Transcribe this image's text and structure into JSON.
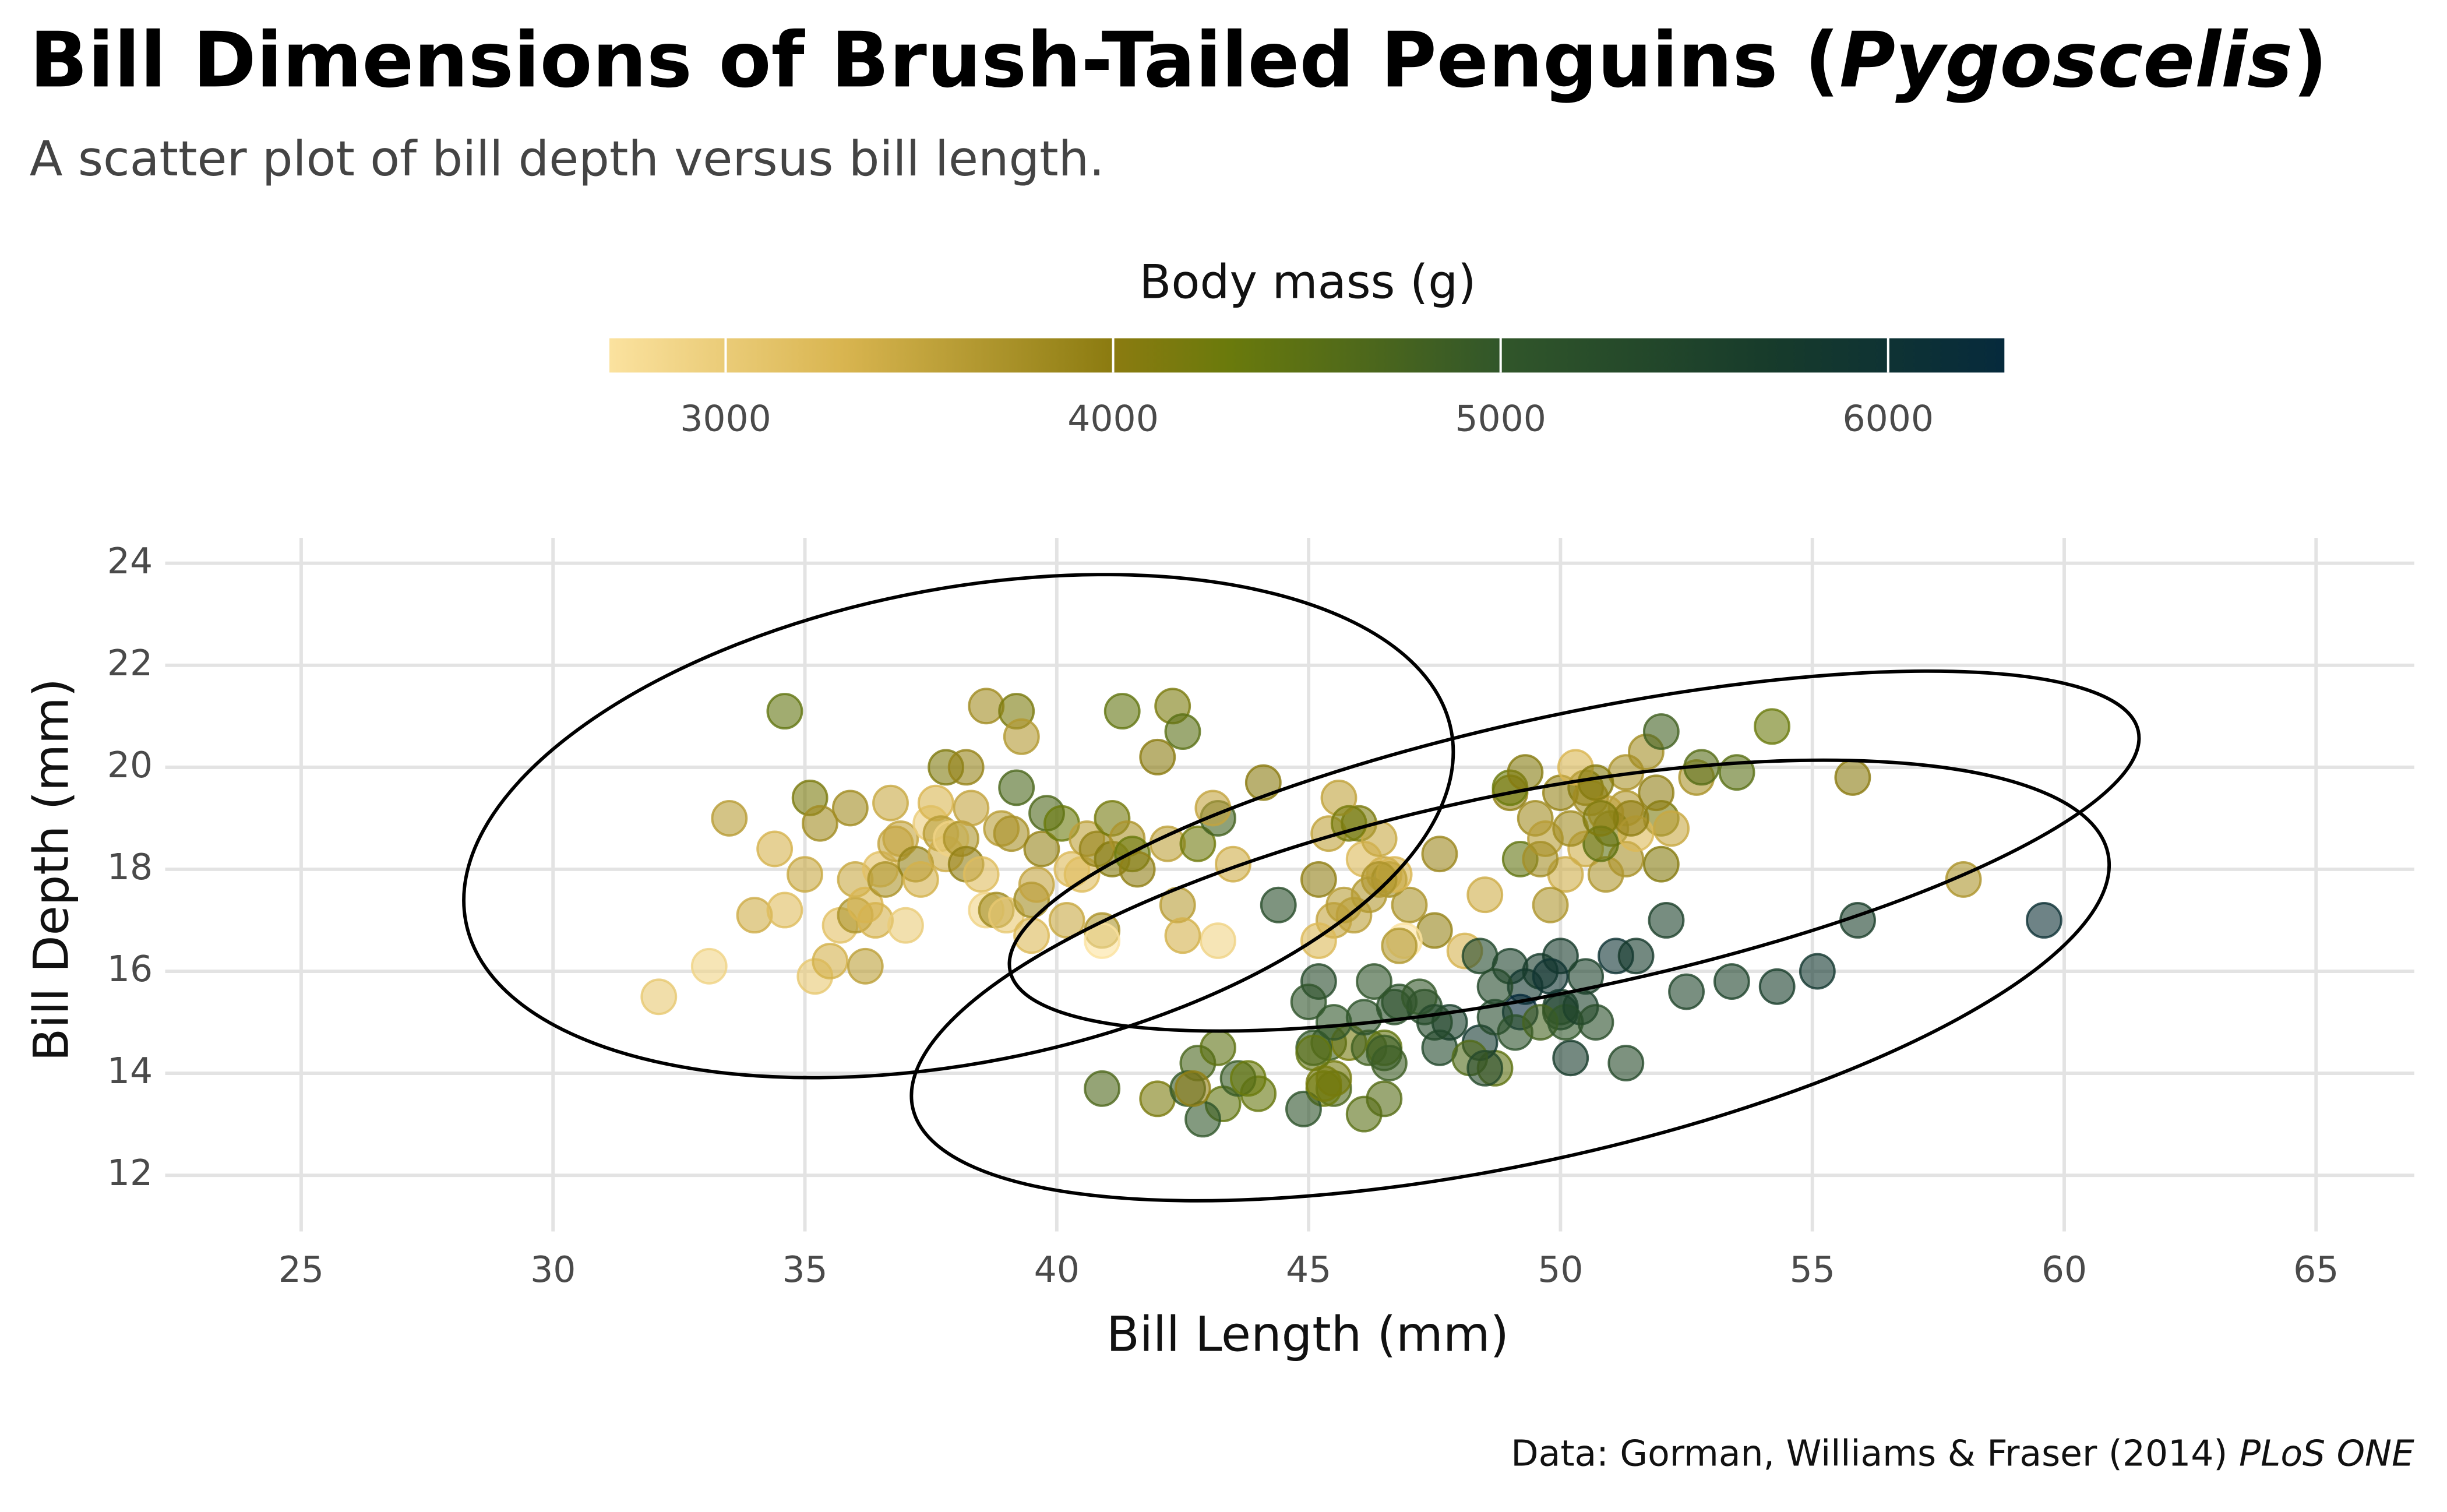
{
  "chart_data": {
    "type": "scatter",
    "title": [
      {
        "text": "Bill Dimensions of Brush-Tailed Penguins ("
      },
      {
        "text": "Pygoscelis",
        "italic": true
      },
      {
        "text": ")"
      }
    ],
    "subtitle": "A scatter plot of bill depth versus bill length.",
    "caption": [
      {
        "text": "Data: Gorman, Williams & Fraser (2014) "
      },
      {
        "text": "PLoS ONE",
        "italic": true
      }
    ],
    "xlabel": "Bill Length (mm)",
    "ylabel": "Bill Depth (mm)",
    "xlim": [
      22.3,
      66.95
    ],
    "ylim": [
      10.9,
      24.5
    ],
    "xticks": [
      25,
      30,
      35,
      40,
      45,
      50,
      55,
      60,
      65
    ],
    "yticks": [
      12,
      14,
      16,
      18,
      20,
      22,
      24
    ],
    "grid": true,
    "point_opacity": 0.6,
    "colorbar_title": "Body mass (g)",
    "colorbar_lim": [
      2700,
      6300
    ],
    "colorbar_ticks": [
      3000,
      4000,
      5000,
      6000
    ],
    "colormap": [
      {
        "value": 2700,
        "color": "#fbe29f"
      },
      {
        "value": 3300,
        "color": "#d9b550"
      },
      {
        "value": 4000,
        "color": "#8b7b10"
      },
      {
        "value": 4300,
        "color": "#6a7a0c"
      },
      {
        "value": 5000,
        "color": "#31562a"
      },
      {
        "value": 5700,
        "color": "#173b2b"
      },
      {
        "value": 6300,
        "color": "#062a3c"
      }
    ],
    "points": [
      {
        "x": 32.1,
        "y": 15.5,
        "mass": 3050
      },
      {
        "x": 33.1,
        "y": 16.1,
        "mass": 2900
      },
      {
        "x": 33.5,
        "y": 19.0,
        "mass": 3600
      },
      {
        "x": 34.0,
        "y": 17.1,
        "mass": 3400
      },
      {
        "x": 34.4,
        "y": 18.4,
        "mass": 3325
      },
      {
        "x": 34.6,
        "y": 21.1,
        "mass": 4400
      },
      {
        "x": 34.6,
        "y": 17.2,
        "mass": 3200
      },
      {
        "x": 35.0,
        "y": 17.9,
        "mass": 3450
      },
      {
        "x": 35.1,
        "y": 19.4,
        "mass": 4150
      },
      {
        "x": 35.2,
        "y": 15.9,
        "mass": 3050
      },
      {
        "x": 35.3,
        "y": 18.9,
        "mass": 3800
      },
      {
        "x": 35.5,
        "y": 16.2,
        "mass": 3350
      },
      {
        "x": 35.7,
        "y": 16.9,
        "mass": 3150
      },
      {
        "x": 35.9,
        "y": 19.2,
        "mass": 3800
      },
      {
        "x": 36.0,
        "y": 17.1,
        "mass": 3700
      },
      {
        "x": 36.0,
        "y": 17.8,
        "mass": 3450
      },
      {
        "x": 36.2,
        "y": 16.1,
        "mass": 3550
      },
      {
        "x": 36.2,
        "y": 17.3,
        "mass": 3300
      },
      {
        "x": 36.4,
        "y": 17.0,
        "mass": 3325
      },
      {
        "x": 36.5,
        "y": 18.0,
        "mass": 3150
      },
      {
        "x": 36.6,
        "y": 17.8,
        "mass": 3700
      },
      {
        "x": 36.7,
        "y": 19.3,
        "mass": 3450
      },
      {
        "x": 36.8,
        "y": 18.5,
        "mass": 3500
      },
      {
        "x": 36.9,
        "y": 18.6,
        "mass": 3500
      },
      {
        "x": 37.0,
        "y": 16.9,
        "mass": 3000
      },
      {
        "x": 37.2,
        "y": 18.1,
        "mass": 3900
      },
      {
        "x": 37.3,
        "y": 17.8,
        "mass": 3350
      },
      {
        "x": 37.5,
        "y": 18.9,
        "mass": 2975
      },
      {
        "x": 37.6,
        "y": 19.3,
        "mass": 3300
      },
      {
        "x": 37.7,
        "y": 18.7,
        "mass": 3600
      },
      {
        "x": 37.8,
        "y": 18.3,
        "mass": 3400
      },
      {
        "x": 37.8,
        "y": 20.0,
        "mass": 4100
      },
      {
        "x": 37.9,
        "y": 18.6,
        "mass": 2900
      },
      {
        "x": 38.1,
        "y": 18.6,
        "mass": 3700
      },
      {
        "x": 38.2,
        "y": 18.1,
        "mass": 3950
      },
      {
        "x": 38.2,
        "y": 20.0,
        "mass": 3900
      },
      {
        "x": 38.3,
        "y": 19.2,
        "mass": 3500
      },
      {
        "x": 38.5,
        "y": 17.9,
        "mass": 3200
      },
      {
        "x": 38.6,
        "y": 21.2,
        "mass": 3800
      },
      {
        "x": 38.6,
        "y": 17.2,
        "mass": 2900
      },
      {
        "x": 38.8,
        "y": 17.2,
        "mass": 3800
      },
      {
        "x": 38.9,
        "y": 18.8,
        "mass": 3600
      },
      {
        "x": 39.0,
        "y": 17.1,
        "mass": 3050
      },
      {
        "x": 39.1,
        "y": 18.7,
        "mass": 3750
      },
      {
        "x": 39.2,
        "y": 19.6,
        "mass": 4675
      },
      {
        "x": 39.2,
        "y": 21.1,
        "mass": 4150
      },
      {
        "x": 39.3,
        "y": 20.6,
        "mass": 3650
      },
      {
        "x": 39.5,
        "y": 16.7,
        "mass": 3250
      },
      {
        "x": 39.5,
        "y": 17.4,
        "mass": 3800
      },
      {
        "x": 39.6,
        "y": 17.7,
        "mass": 3500
      },
      {
        "x": 39.7,
        "y": 18.4,
        "mass": 3900
      },
      {
        "x": 39.8,
        "y": 19.1,
        "mass": 4650
      },
      {
        "x": 40.1,
        "y": 18.9,
        "mass": 4300
      },
      {
        "x": 40.2,
        "y": 17.0,
        "mass": 3450
      },
      {
        "x": 40.3,
        "y": 18.0,
        "mass": 3250
      },
      {
        "x": 40.5,
        "y": 17.9,
        "mass": 3200
      },
      {
        "x": 40.6,
        "y": 18.6,
        "mass": 3550
      },
      {
        "x": 40.8,
        "y": 18.4,
        "mass": 3900
      },
      {
        "x": 40.9,
        "y": 16.8,
        "mass": 3700
      },
      {
        "x": 41.1,
        "y": 19.0,
        "mass": 4200
      },
      {
        "x": 41.1,
        "y": 18.2,
        "mass": 4050
      },
      {
        "x": 41.3,
        "y": 21.1,
        "mass": 4400
      },
      {
        "x": 41.4,
        "y": 18.6,
        "mass": 3700
      },
      {
        "x": 41.5,
        "y": 18.3,
        "mass": 4300
      },
      {
        "x": 41.6,
        "y": 18.0,
        "mass": 3950
      },
      {
        "x": 42.0,
        "y": 20.2,
        "mass": 4000
      },
      {
        "x": 42.2,
        "y": 18.5,
        "mass": 3550
      },
      {
        "x": 42.3,
        "y": 21.2,
        "mass": 4150
      },
      {
        "x": 42.5,
        "y": 20.7,
        "mass": 4500
      },
      {
        "x": 42.8,
        "y": 18.5,
        "mass": 4250
      },
      {
        "x": 43.2,
        "y": 19.0,
        "mass": 4775
      },
      {
        "x": 43.1,
        "y": 19.2,
        "mass": 3500
      },
      {
        "x": 44.1,
        "y": 19.7,
        "mass": 4000
      },
      {
        "x": 46.5,
        "y": 17.9,
        "mass": 3500
      },
      {
        "x": 50.0,
        "y": 19.5,
        "mass": 3900
      },
      {
        "x": 51.3,
        "y": 19.2,
        "mass": 3650
      },
      {
        "x": 45.4,
        "y": 18.7,
        "mass": 3525
      },
      {
        "x": 52.7,
        "y": 19.8,
        "mass": 3725
      },
      {
        "x": 45.2,
        "y": 17.8,
        "mass": 3950
      },
      {
        "x": 46.1,
        "y": 18.2,
        "mass": 3250
      },
      {
        "x": 51.3,
        "y": 18.2,
        "mass": 3750
      },
      {
        "x": 46.0,
        "y": 18.9,
        "mass": 4150
      },
      {
        "x": 51.3,
        "y": 19.9,
        "mass": 3700
      },
      {
        "x": 46.6,
        "y": 17.8,
        "mass": 3800
      },
      {
        "x": 51.7,
        "y": 20.3,
        "mass": 3775
      },
      {
        "x": 47.0,
        "y": 17.3,
        "mass": 3700
      },
      {
        "x": 52.0,
        "y": 18.1,
        "mass": 4050
      },
      {
        "x": 45.9,
        "y": 17.1,
        "mass": 3575
      },
      {
        "x": 50.5,
        "y": 19.6,
        "mass": 4050
      },
      {
        "x": 50.3,
        "y": 20.0,
        "mass": 3300
      },
      {
        "x": 58.0,
        "y": 17.8,
        "mass": 3700
      },
      {
        "x": 46.4,
        "y": 18.6,
        "mass": 3450
      },
      {
        "x": 49.2,
        "y": 18.2,
        "mass": 4400
      },
      {
        "x": 42.4,
        "y": 17.3,
        "mass": 3600
      },
      {
        "x": 48.5,
        "y": 17.5,
        "mass": 3400
      },
      {
        "x": 43.2,
        "y": 16.6,
        "mass": 2900
      },
      {
        "x": 50.6,
        "y": 19.4,
        "mass": 3800
      },
      {
        "x": 46.7,
        "y": 17.9,
        "mass": 3300
      },
      {
        "x": 52.0,
        "y": 19.0,
        "mass": 4150
      },
      {
        "x": 50.5,
        "y": 18.4,
        "mass": 3400
      },
      {
        "x": 49.5,
        "y": 19.0,
        "mass": 3800
      },
      {
        "x": 46.4,
        "y": 17.8,
        "mass": 3700
      },
      {
        "x": 52.8,
        "y": 20.0,
        "mass": 4550
      },
      {
        "x": 40.9,
        "y": 16.6,
        "mass": 2700
      },
      {
        "x": 54.2,
        "y": 20.8,
        "mass": 4300
      },
      {
        "x": 42.5,
        "y": 16.7,
        "mass": 3350
      },
      {
        "x": 51.0,
        "y": 18.8,
        "mass": 4100
      },
      {
        "x": 49.7,
        "y": 18.6,
        "mass": 3600
      },
      {
        "x": 47.5,
        "y": 16.8,
        "mass": 3900
      },
      {
        "x": 47.6,
        "y": 18.3,
        "mass": 3850
      },
      {
        "x": 52.0,
        "y": 20.7,
        "mass": 4800
      },
      {
        "x": 46.9,
        "y": 16.6,
        "mass": 2700
      },
      {
        "x": 53.5,
        "y": 19.9,
        "mass": 4500
      },
      {
        "x": 49.0,
        "y": 19.5,
        "mass": 3950
      },
      {
        "x": 46.2,
        "y": 17.5,
        "mass": 3650
      },
      {
        "x": 50.9,
        "y": 19.1,
        "mass": 3550
      },
      {
        "x": 45.5,
        "y": 17.0,
        "mass": 3500
      },
      {
        "x": 50.9,
        "y": 17.9,
        "mass": 3675
      },
      {
        "x": 50.8,
        "y": 18.5,
        "mass": 4450
      },
      {
        "x": 50.1,
        "y": 17.9,
        "mass": 3400
      },
      {
        "x": 49.0,
        "y": 19.6,
        "mass": 4300
      },
      {
        "x": 51.5,
        "y": 18.7,
        "mass": 3250
      },
      {
        "x": 49.8,
        "y": 17.3,
        "mass": 3675
      },
      {
        "x": 48.1,
        "y": 16.4,
        "mass": 3325
      },
      {
        "x": 51.4,
        "y": 19.0,
        "mass": 3950
      },
      {
        "x": 45.7,
        "y": 17.3,
        "mass": 3600
      },
      {
        "x": 50.7,
        "y": 19.7,
        "mass": 4050
      },
      {
        "x": 52.2,
        "y": 18.8,
        "mass": 3450
      },
      {
        "x": 45.2,
        "y": 16.6,
        "mass": 3250
      },
      {
        "x": 49.3,
        "y": 19.9,
        "mass": 4050
      },
      {
        "x": 50.2,
        "y": 18.8,
        "mass": 3800
      },
      {
        "x": 45.6,
        "y": 19.4,
        "mass": 3525
      },
      {
        "x": 51.9,
        "y": 19.5,
        "mass": 3950
      },
      {
        "x": 46.8,
        "y": 16.5,
        "mass": 3650
      },
      {
        "x": 55.8,
        "y": 19.8,
        "mass": 4000
      },
      {
        "x": 43.5,
        "y": 18.1,
        "mass": 3400
      },
      {
        "x": 49.6,
        "y": 18.2,
        "mass": 3775
      },
      {
        "x": 50.8,
        "y": 19.0,
        "mass": 4100
      },
      {
        "x": 45.8,
        "y": 18.9,
        "mass": 4200
      },
      {
        "x": 46.1,
        "y": 13.2,
        "mass": 4500
      },
      {
        "x": 50.0,
        "y": 16.3,
        "mass": 5700
      },
      {
        "x": 48.7,
        "y": 14.1,
        "mass": 4450
      },
      {
        "x": 50.0,
        "y": 15.2,
        "mass": 5700
      },
      {
        "x": 47.6,
        "y": 14.5,
        "mass": 5400
      },
      {
        "x": 46.5,
        "y": 13.5,
        "mass": 4550
      },
      {
        "x": 45.4,
        "y": 14.6,
        "mass": 4800
      },
      {
        "x": 46.7,
        "y": 15.3,
        "mass": 5200
      },
      {
        "x": 43.3,
        "y": 13.4,
        "mass": 4400
      },
      {
        "x": 46.8,
        "y": 15.4,
        "mass": 5150
      },
      {
        "x": 40.9,
        "y": 13.7,
        "mass": 4650
      },
      {
        "x": 49.0,
        "y": 16.1,
        "mass": 5550
      },
      {
        "x": 45.5,
        "y": 13.7,
        "mass": 4650
      },
      {
        "x": 48.4,
        "y": 14.6,
        "mass": 5850
      },
      {
        "x": 45.8,
        "y": 14.6,
        "mass": 4200
      },
      {
        "x": 49.3,
        "y": 15.7,
        "mass": 5850
      },
      {
        "x": 42.0,
        "y": 13.5,
        "mass": 4150
      },
      {
        "x": 49.2,
        "y": 15.2,
        "mass": 6300
      },
      {
        "x": 46.2,
        "y": 14.5,
        "mass": 4800
      },
      {
        "x": 48.7,
        "y": 15.1,
        "mass": 5350
      },
      {
        "x": 50.2,
        "y": 14.3,
        "mass": 5700
      },
      {
        "x": 45.1,
        "y": 14.5,
        "mass": 5000
      },
      {
        "x": 46.5,
        "y": 14.5,
        "mass": 4400
      },
      {
        "x": 46.3,
        "y": 15.8,
        "mass": 5050
      },
      {
        "x": 42.9,
        "y": 13.1,
        "mass": 5000
      },
      {
        "x": 46.1,
        "y": 15.1,
        "mass": 5100
      },
      {
        "x": 47.8,
        "y": 15.0,
        "mass": 5650
      },
      {
        "x": 48.2,
        "y": 14.3,
        "mass": 4600
      },
      {
        "x": 50.0,
        "y": 15.3,
        "mass": 5550
      },
      {
        "x": 47.3,
        "y": 15.3,
        "mass": 5250
      },
      {
        "x": 42.8,
        "y": 14.2,
        "mass": 4700
      },
      {
        "x": 59.6,
        "y": 17.0,
        "mass": 6050
      },
      {
        "x": 49.1,
        "y": 14.8,
        "mass": 5150
      },
      {
        "x": 48.4,
        "y": 16.3,
        "mass": 5400
      },
      {
        "x": 42.6,
        "y": 13.7,
        "mass": 4950
      },
      {
        "x": 44.4,
        "y": 17.3,
        "mass": 5250
      },
      {
        "x": 44.0,
        "y": 13.6,
        "mass": 4350
      },
      {
        "x": 48.7,
        "y": 15.7,
        "mass": 5350
      },
      {
        "x": 42.7,
        "y": 13.7,
        "mass": 3950
      },
      {
        "x": 49.6,
        "y": 16.0,
        "mass": 5700
      },
      {
        "x": 45.3,
        "y": 13.7,
        "mass": 4300
      },
      {
        "x": 49.6,
        "y": 15.0,
        "mass": 4750
      },
      {
        "x": 50.5,
        "y": 15.9,
        "mass": 5550
      },
      {
        "x": 43.6,
        "y": 13.9,
        "mass": 4900
      },
      {
        "x": 45.5,
        "y": 13.9,
        "mass": 4200
      },
      {
        "x": 44.9,
        "y": 13.3,
        "mass": 5100
      },
      {
        "x": 45.2,
        "y": 15.8,
        "mass": 5300
      },
      {
        "x": 46.6,
        "y": 14.2,
        "mass": 4850
      },
      {
        "x": 48.5,
        "y": 14.1,
        "mass": 5300
      },
      {
        "x": 45.1,
        "y": 14.4,
        "mass": 4400
      },
      {
        "x": 50.1,
        "y": 15.0,
        "mass": 5000
      },
      {
        "x": 46.5,
        "y": 14.4,
        "mass": 4900
      },
      {
        "x": 45.0,
        "y": 15.4,
        "mass": 5050
      },
      {
        "x": 43.8,
        "y": 13.9,
        "mass": 4300
      },
      {
        "x": 45.5,
        "y": 15.0,
        "mass": 5000
      },
      {
        "x": 43.2,
        "y": 14.5,
        "mass": 4450
      },
      {
        "x": 50.4,
        "y": 15.3,
        "mass": 5550
      },
      {
        "x": 53.4,
        "y": 15.8,
        "mass": 5500
      },
      {
        "x": 55.1,
        "y": 16.0,
        "mass": 5850
      },
      {
        "x": 52.1,
        "y": 17.0,
        "mass": 5550
      },
      {
        "x": 54.3,
        "y": 15.7,
        "mass": 5650
      },
      {
        "x": 51.3,
        "y": 14.2,
        "mass": 5300
      },
      {
        "x": 52.5,
        "y": 15.6,
        "mass": 5450
      },
      {
        "x": 55.9,
        "y": 17.0,
        "mass": 5600
      },
      {
        "x": 47.2,
        "y": 15.5,
        "mass": 4975
      },
      {
        "x": 45.3,
        "y": 13.8,
        "mass": 4200
      },
      {
        "x": 51.1,
        "y": 16.3,
        "mass": 6000
      },
      {
        "x": 49.8,
        "y": 15.9,
        "mass": 5950
      },
      {
        "x": 50.7,
        "y": 15.0,
        "mass": 5200
      },
      {
        "x": 51.5,
        "y": 16.3,
        "mass": 5750
      },
      {
        "x": 47.5,
        "y": 15.0,
        "mass": 5350
      }
    ]
  }
}
